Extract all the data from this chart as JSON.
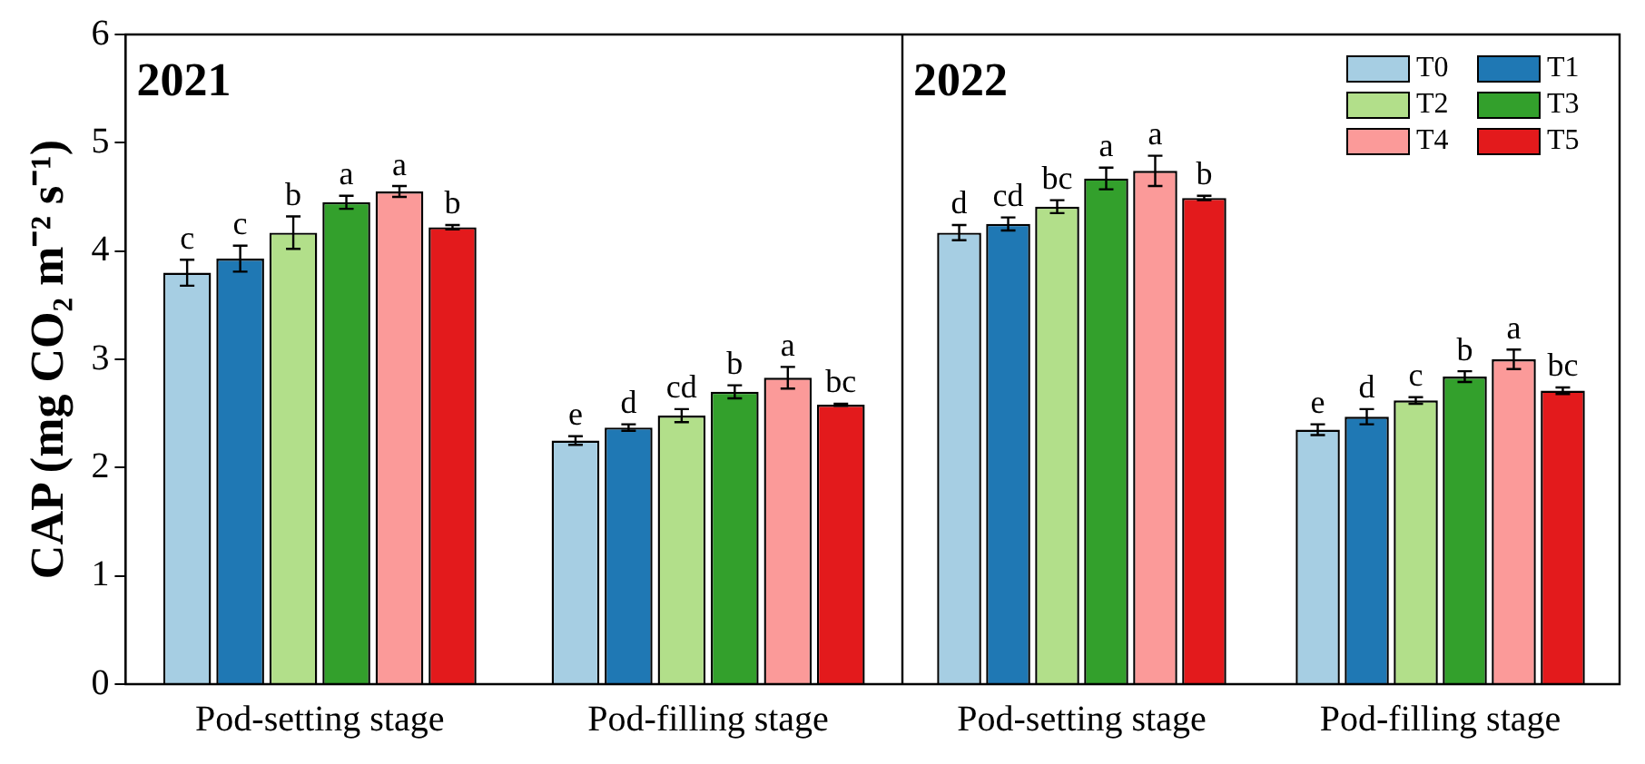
{
  "chart_data": [
    {
      "type": "bar",
      "title": "2021",
      "ylabel": "CAP (mg CO₂ m⁻² s⁻¹)",
      "categories": [
        "Pod-setting stage",
        "Pod-filling stage"
      ],
      "ylim": [
        0,
        6
      ],
      "yticks": [
        0,
        1,
        2,
        3,
        4,
        5,
        6
      ],
      "grid": false,
      "legend": false,
      "series": [
        {
          "color": "#a6cee3",
          "values": [
            3.8,
            2.25
          ],
          "errors": [
            0.12,
            0.04
          ],
          "value_labels": [
            "c",
            "e"
          ]
        },
        {
          "color": "#1f78b4",
          "values": [
            3.93,
            2.37
          ],
          "errors": [
            0.12,
            0.03
          ],
          "value_labels": [
            "c",
            "d"
          ]
        },
        {
          "color": "#b2df8a",
          "values": [
            4.17,
            2.48
          ],
          "errors": [
            0.15,
            0.06
          ],
          "value_labels": [
            "b",
            "cd"
          ]
        },
        {
          "color": "#33a02c",
          "values": [
            4.45,
            2.7
          ],
          "errors": [
            0.06,
            0.06
          ],
          "value_labels": [
            "a",
            "b"
          ]
        },
        {
          "color": "#fb9a99",
          "values": [
            4.55,
            2.83
          ],
          "errors": [
            0.05,
            0.1
          ],
          "value_labels": [
            "a",
            "a"
          ]
        },
        {
          "color": "#e31a1c",
          "values": [
            4.22,
            2.58
          ],
          "errors": [
            0.02,
            0.01
          ],
          "value_labels": [
            "b",
            "bc"
          ]
        }
      ]
    },
    {
      "type": "bar",
      "title": "2022",
      "categories": [
        "Pod-setting stage",
        "Pod-filling stage"
      ],
      "ylim": [
        0,
        6
      ],
      "yticks": [
        0,
        1,
        2,
        3,
        4,
        5,
        6
      ],
      "grid": false,
      "legend": "top right",
      "tick_labels": "x",
      "series": [
        {
          "name": "T0",
          "color": "#a6cee3",
          "values": [
            4.17,
            2.35
          ],
          "errors": [
            0.07,
            0.05
          ],
          "value_labels": [
            "d",
            "e"
          ]
        },
        {
          "name": "T1",
          "color": "#1f78b4",
          "values": [
            4.25,
            2.47
          ],
          "errors": [
            0.06,
            0.07
          ],
          "value_labels": [
            "cd",
            "d"
          ]
        },
        {
          "name": "T2",
          "color": "#b2df8a",
          "values": [
            4.41,
            2.62
          ],
          "errors": [
            0.06,
            0.03
          ],
          "value_labels": [
            "bc",
            "c"
          ]
        },
        {
          "name": "T3",
          "color": "#33a02c",
          "values": [
            4.67,
            2.84
          ],
          "errors": [
            0.1,
            0.05
          ],
          "value_labels": [
            "a",
            "b"
          ]
        },
        {
          "name": "T4",
          "color": "#fb9a99",
          "values": [
            4.74,
            3.0
          ],
          "errors": [
            0.14,
            0.09
          ],
          "value_labels": [
            "a",
            "a"
          ]
        },
        {
          "name": "T5",
          "color": "#e31a1c",
          "values": [
            4.49,
            2.71
          ],
          "errors": [
            0.02,
            0.03
          ],
          "value_labels": [
            "b",
            "bc"
          ]
        }
      ]
    }
  ]
}
